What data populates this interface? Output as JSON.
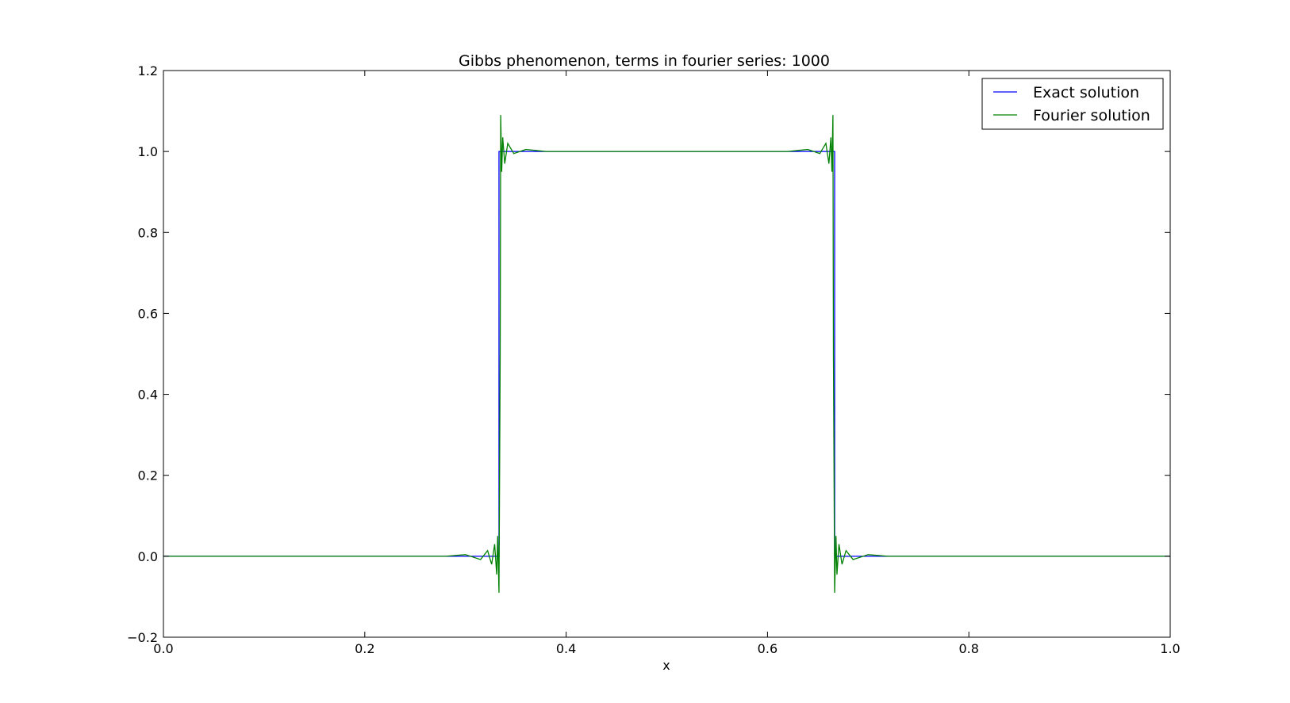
{
  "chart_data": {
    "type": "line",
    "title": "Gibbs phenomenon, terms in fourier series: 1000",
    "xlabel": "x",
    "ylabel": "",
    "xlim": [
      0.0,
      1.0
    ],
    "ylim": [
      -0.2,
      1.2
    ],
    "xticks": [
      "0.0",
      "0.2",
      "0.4",
      "0.6",
      "0.8",
      "1.0"
    ],
    "yticks": [
      "−0.2",
      "0.0",
      "0.2",
      "0.4",
      "0.6",
      "0.8",
      "1.0",
      "1.2"
    ],
    "grid": false,
    "legend_position": "top-right",
    "series": [
      {
        "name": "Exact solution",
        "color": "#0000ff",
        "x": [
          0.0,
          0.3333,
          0.3333,
          0.6667,
          0.6667,
          1.0
        ],
        "y": [
          0.0,
          0.0,
          1.0,
          1.0,
          0.0,
          0.0
        ]
      },
      {
        "name": "Fourier solution",
        "color": "#008000",
        "x": [
          0.0,
          0.28,
          0.3,
          0.315,
          0.322,
          0.326,
          0.329,
          0.331,
          0.332,
          0.3333,
          0.3345,
          0.335,
          0.336,
          0.337,
          0.339,
          0.342,
          0.348,
          0.36,
          0.38,
          0.62,
          0.64,
          0.652,
          0.658,
          0.661,
          0.663,
          0.664,
          0.665,
          0.6655,
          0.6667,
          0.668,
          0.669,
          0.671,
          0.674,
          0.678,
          0.685,
          0.7,
          0.72,
          1.0
        ],
        "y": [
          0.0,
          0.0,
          0.004,
          -0.008,
          0.014,
          -0.02,
          0.03,
          -0.045,
          0.05,
          -0.09,
          0.5,
          1.09,
          0.95,
          1.035,
          0.97,
          1.02,
          0.995,
          1.005,
          1.0,
          1.0,
          1.005,
          0.995,
          1.02,
          0.97,
          1.035,
          0.95,
          1.09,
          0.5,
          -0.09,
          0.05,
          -0.045,
          0.03,
          -0.02,
          0.014,
          -0.008,
          0.004,
          0.0,
          0.0
        ]
      }
    ]
  }
}
